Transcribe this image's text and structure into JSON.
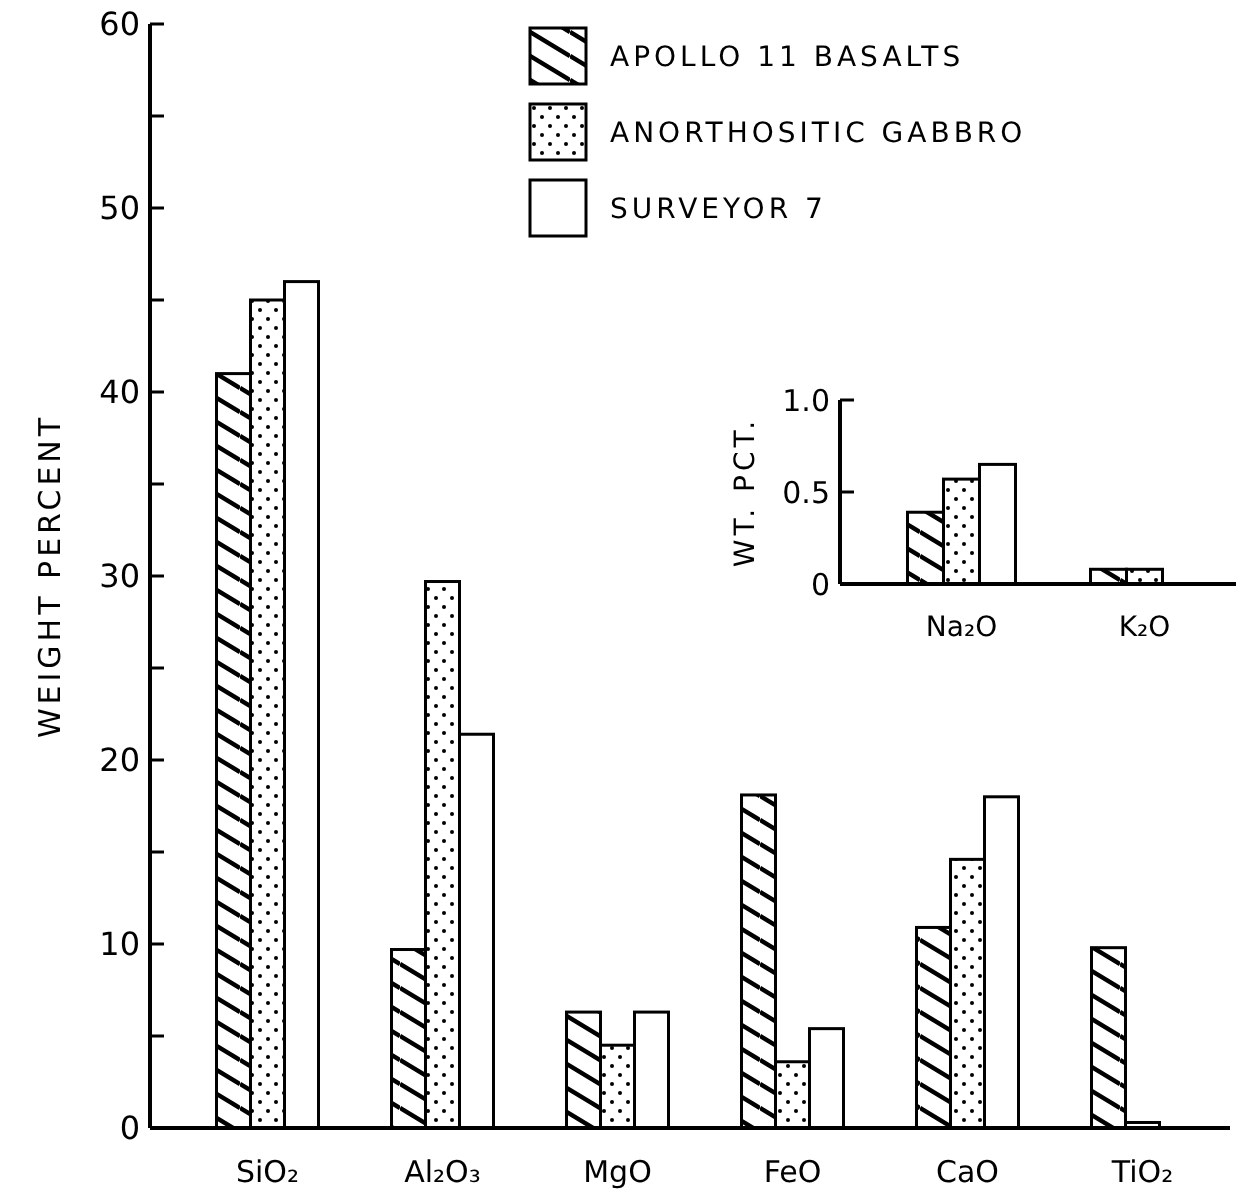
{
  "chart_data": [
    {
      "type": "bar",
      "ylabel": "WEIGHT PERCENT",
      "categories": [
        "SiO₂",
        "Al₂O₃",
        "MgO",
        "FeO",
        "CaO",
        "TiO₂"
      ],
      "series": [
        {
          "name": "APOLLO 11 BASALTS",
          "color": "#000000",
          "values": [
            41,
            9.7,
            6.3,
            18.1,
            10.9,
            9.8
          ]
        },
        {
          "name": "ANORTHOSITIC GABBRO",
          "color": "#000000",
          "values": [
            45,
            29.7,
            4.5,
            3.6,
            14.6,
            0.3
          ]
        },
        {
          "name": "SURVEYOR 7",
          "color": "#000000",
          "values": [
            46,
            21.4,
            6.3,
            5.4,
            18,
            null
          ]
        }
      ],
      "ylim": [
        0,
        60
      ],
      "yticks": [
        0,
        {
          "value": 5,
          "label": null
        },
        10,
        {
          "value": 15,
          "label": null
        },
        20,
        {
          "value": 25,
          "label": null
        },
        30,
        {
          "value": 35,
          "label": null
        },
        40,
        {
          "value": 45,
          "label": null
        },
        50,
        {
          "value": 55,
          "label": null
        },
        60
      ],
      "legend": "top right"
    },
    {
      "type": "bar",
      "ylabel": "WT. PCT.",
      "categories": [
        "Na₂O",
        "K₂O"
      ],
      "series": [
        {
          "color": "#000000",
          "values": [
            0.39,
            0.08
          ]
        },
        {
          "color": "#000000",
          "values": [
            0.57,
            0.08
          ]
        },
        {
          "color": "#000000",
          "values": [
            0.65,
            null
          ]
        }
      ],
      "ylim": [
        0,
        1.0
      ],
      "yticks": [
        0,
        0.5,
        {
          "value": 1.0,
          "label": "1.0"
        }
      ]
    }
  ]
}
